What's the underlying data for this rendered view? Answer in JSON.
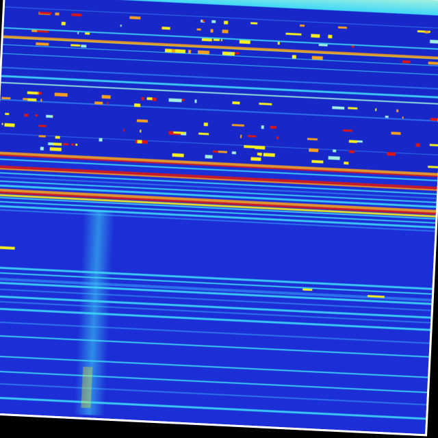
{
  "colormap": {
    "background": "#1c2fd6",
    "dark": "#1420b8",
    "light_blue": "#2f7af0",
    "cyan": "#3fd8f8",
    "pale_cyan": "#9ff0e0",
    "yellow": "#f6f020",
    "orange": "#f5a020",
    "red": "#d81818"
  }
}
